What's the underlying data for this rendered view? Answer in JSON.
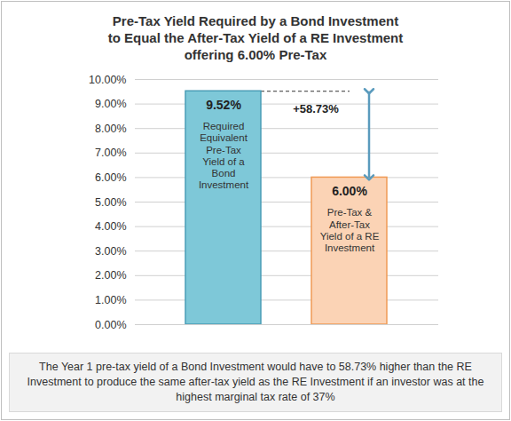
{
  "chart_data": {
    "type": "bar",
    "title": "Pre-Tax Yield Required by a Bond Investment\nto Equal the After-Tax Yield of a RE Investment\noffering 6.00% Pre-Tax",
    "categories": [
      null,
      null
    ],
    "values": [
      9.52,
      6.0
    ],
    "value_labels": [
      "9.52%",
      "6.00%"
    ],
    "data_labels": true,
    "colors": [
      "#7ec8d8",
      "#fbd3b5"
    ],
    "bar_texts": [
      "Required\nEquivalent\nPre-Tax\nYield of a\nBond\nInvestment",
      "Pre-Tax &\nAfter-Tax\nYield of a RE\nInvestment"
    ],
    "difference_label": "+58.73%",
    "caption": "The Year 1 pre-tax yield of a Bond Investment would have to 58.73% higher than the RE Investment to produce the same after-tax yield as the RE Investment if an investor was at the highest marginal tax rate of 37%",
    "ylim": [
      0,
      10
    ],
    "yticks": [
      {
        "value": 0,
        "label": "0.00%"
      },
      {
        "value": 1,
        "label": "1.00%"
      },
      {
        "value": 2,
        "label": "2.00%"
      },
      {
        "value": 3,
        "label": "3.00%"
      },
      {
        "value": 4,
        "label": "4.00%"
      },
      {
        "value": 5,
        "label": "5.00%"
      },
      {
        "value": 6,
        "label": "6.00%"
      },
      {
        "value": 7,
        "label": "7.00%"
      },
      {
        "value": 8,
        "label": "8.00%"
      },
      {
        "value": 9,
        "label": "9.00%"
      },
      {
        "value": 10,
        "label": "10.00%"
      }
    ],
    "grid": true,
    "tick_labels": "y"
  }
}
